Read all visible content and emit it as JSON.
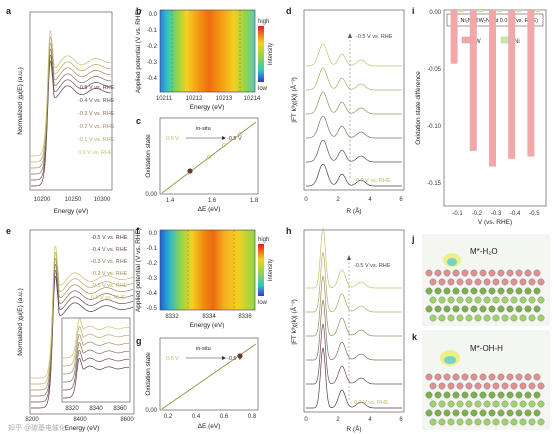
{
  "panels": {
    "a": {
      "letter": "a",
      "ylabel": "Normalized χμ(E) (a.u.)",
      "xlabel": "Energy (eV)",
      "xticks": [
        "10200",
        "10250",
        "10300"
      ],
      "curves": [
        "-0.5 V vs. RHE",
        "-0.4 V vs. RHE",
        "-0.3 V vs. RHE",
        "-0.2 V vs. RHE",
        "-0.1 V vs. RHE",
        "0.0 V vs. RHE"
      ]
    },
    "b": {
      "letter": "b",
      "ylabel": "Applied potential (V vs. RHE)",
      "xlabel": "Energy (eV)",
      "xticks": [
        "10211",
        "10212",
        "10213",
        "10214"
      ],
      "yticks": [
        "0.0",
        "-0.1",
        "-0.2",
        "-0.3",
        "-0.4"
      ],
      "cbar_high": "high",
      "cbar_low": "low",
      "cbar_label": "Intensity"
    },
    "c": {
      "letter": "c",
      "ylabel": "Oxidation state",
      "xlabel": "ΔE (eV)",
      "xticks": [
        "1.4",
        "1.6",
        "1.8"
      ],
      "ytick_bottom": "0.00",
      "insitu": "in-situ",
      "from": "0.0 V",
      "to": "-0.5 V"
    },
    "d": {
      "letter": "d",
      "ylabel": "|FT k³χ(k)| (Å⁻³)",
      "xlabel": "R (Å)",
      "xticks": [
        "0",
        "2",
        "4",
        "6"
      ],
      "top_label": "-0.5 V vs. RHE",
      "bottom_label": "0.0 V vs. RHE"
    },
    "e": {
      "letter": "e",
      "ylabel": "Normalized χμ(E) (a.u.)",
      "xlabel": "Energy (eV)",
      "xticks": [
        "8200",
        "8400",
        "8600"
      ],
      "inset_xticks": [
        "8320",
        "8340",
        "8360"
      ],
      "curves": [
        "-0.5 V vs. RHE",
        "-0.4 V vs. RHE",
        "-0.3 V vs. RHE",
        "-0.2 V vs. RHE",
        "-0.1 V vs. RHE",
        "0.0 V vs. RHE"
      ]
    },
    "f": {
      "letter": "f",
      "ylabel": "Applied potential (V vs. RHE)",
      "xlabel": "Energy (eV)",
      "xticks": [
        "8332",
        "8334",
        "8336"
      ],
      "yticks": [
        "0.0",
        "-0.1",
        "-0.2",
        "-0.3",
        "-0.4",
        "-0.5"
      ],
      "cbar_high": "high",
      "cbar_low": "low",
      "cbar_label": "Intensity"
    },
    "g": {
      "letter": "g",
      "ylabel": "Oxidation state",
      "xlabel": "ΔE (eV)",
      "xticks": [
        "0.2",
        "0.4",
        "0.6",
        "0.8"
      ],
      "ytick_bottom": "0.00",
      "insitu": "in-situ",
      "from": "0.0 V",
      "to": "-0.5 V"
    },
    "h": {
      "letter": "h",
      "ylabel": "|FT k³χ(k)| (Å⁻³)",
      "xlabel": "R (Å)",
      "xticks": [
        "0",
        "2",
        "4",
        "6"
      ],
      "top_label": "-0.5 V vs. RHE",
      "bottom_label": "0.0 V vs. RHE"
    },
    "i": {
      "letter": "i",
      "title": "vs. Ni₂Ni@W₂N₃ at 0.0 V (vs. RHE)",
      "ylabel": "Oxidation state difference",
      "xlabel": "V (vs. RHE)",
      "legend": [
        "W",
        "Ni"
      ],
      "yticks": [
        "0.00",
        "-0.05",
        "-0.10",
        "-0.15"
      ]
    },
    "j": {
      "letter": "j",
      "label": "M*-H₂O"
    },
    "k": {
      "letter": "k",
      "label": "M*-OH-H"
    }
  },
  "chart_data": {
    "type": "bar",
    "categories": [
      "-0.1",
      "-0.2",
      "-0.3",
      "-0.4",
      "-0.5"
    ],
    "series": [
      {
        "name": "W",
        "values": [
          -0.048,
          -0.126,
          -0.14,
          -0.133,
          -0.131
        ]
      },
      {
        "name": "Ni",
        "values": [
          -0.002,
          -0.002,
          -0.002,
          -0.002,
          -0.002
        ]
      }
    ],
    "xlabel": "V (vs. RHE)",
    "ylabel": "Oxidation state difference",
    "ylim": [
      -0.17,
      0.0
    ],
    "legend": "top-right"
  },
  "colors": {
    "W": "#f2a7a9",
    "Ni": "#c9e6a8",
    "curve_dark": "#5a3a4a",
    "curve_light": "#c8c86a"
  },
  "watermark": "知乎 @碳基电催化"
}
